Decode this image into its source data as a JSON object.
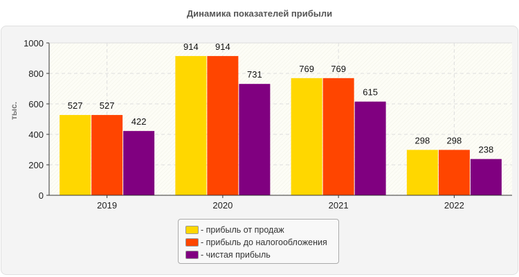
{
  "chart_data": {
    "type": "bar",
    "title": "Динамика показателей прибыли",
    "ylabel": "тыс.",
    "xlabel": "",
    "ylim": [
      0,
      1000
    ],
    "yticks": [
      0,
      200,
      400,
      600,
      800,
      1000
    ],
    "grid": true,
    "legend_position": "bottom",
    "categories": [
      "2019",
      "2020",
      "2021",
      "2022"
    ],
    "series": [
      {
        "name": "- прибыль от продаж",
        "color": "#FFD700",
        "values": [
          527,
          914,
          769,
          298
        ]
      },
      {
        "name": "- прибыль до налогообложения",
        "color": "#FF4500",
        "values": [
          527,
          914,
          769,
          298
        ]
      },
      {
        "name": "- чистая прибыль",
        "color": "#800080",
        "values": [
          422,
          731,
          615,
          238
        ]
      }
    ]
  }
}
